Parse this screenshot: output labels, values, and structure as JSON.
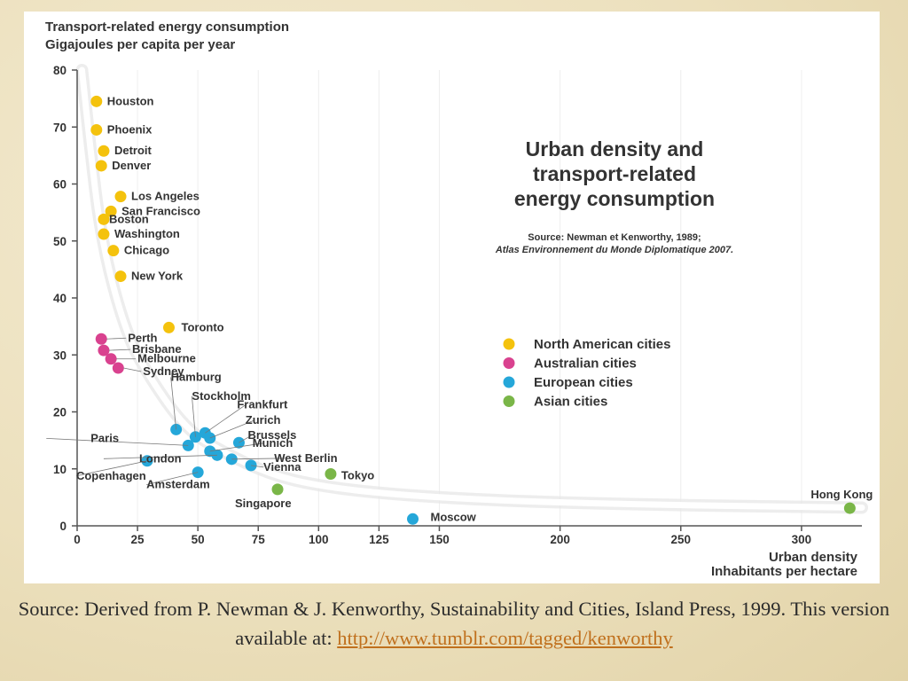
{
  "chart_data": {
    "type": "scatter",
    "title": "Urban density and transport-related energy consumption",
    "title_lines": [
      "Urban density and",
      "transport-related",
      "energy consumption"
    ],
    "source_lines": [
      "Source: Newman et Kenworthy, 1989;",
      "Atlas Environnement du Monde Diplomatique 2007."
    ],
    "ylabel_lines": [
      "Transport-related energy consumption",
      "Gigajoules per capita per year"
    ],
    "xlabel_lines": [
      "Urban density",
      "Inhabitants per hectare"
    ],
    "xlim": [
      0,
      325
    ],
    "ylim": [
      0,
      80
    ],
    "x_ticks": [
      0,
      25,
      50,
      75,
      100,
      125,
      150,
      200,
      250,
      300
    ],
    "y_ticks": [
      0,
      10,
      20,
      30,
      40,
      50,
      60,
      70,
      80
    ],
    "legend": [
      {
        "key": "north_american",
        "label": "North American cities",
        "color": "#f4c20d"
      },
      {
        "key": "australian",
        "label": "Australian cities",
        "color": "#d9428f"
      },
      {
        "key": "european",
        "label": "European cities",
        "color": "#25a7d9"
      },
      {
        "key": "asian",
        "label": "Asian cities",
        "color": "#7ab648"
      }
    ],
    "series": [
      {
        "name": "North American cities",
        "key": "north_american",
        "points": [
          {
            "city": "Houston",
            "x": 8,
            "y": 74.5
          },
          {
            "city": "Phoenix",
            "x": 8,
            "y": 69.5
          },
          {
            "city": "Detroit",
            "x": 11,
            "y": 65.8
          },
          {
            "city": "Denver",
            "x": 10,
            "y": 63.2
          },
          {
            "city": "Los Angeles",
            "x": 18,
            "y": 57.8
          },
          {
            "city": "San Francisco",
            "x": 14,
            "y": 55.2
          },
          {
            "city": "Boston",
            "x": 11,
            "y": 53.8
          },
          {
            "city": "Washington",
            "x": 11,
            "y": 51.2
          },
          {
            "city": "Chicago",
            "x": 15,
            "y": 48.3
          },
          {
            "city": "New York",
            "x": 18,
            "y": 43.8
          },
          {
            "city": "Toronto",
            "x": 38,
            "y": 34.8
          }
        ]
      },
      {
        "name": "Australian cities",
        "key": "australian",
        "points": [
          {
            "city": "Perth",
            "x": 10,
            "y": 32.8
          },
          {
            "city": "Brisbane",
            "x": 11,
            "y": 30.8
          },
          {
            "city": "Melbourne",
            "x": 14,
            "y": 29.3
          },
          {
            "city": "Sydney",
            "x": 17,
            "y": 27.7
          }
        ]
      },
      {
        "name": "European cities",
        "key": "european",
        "points": [
          {
            "city": "Hamburg",
            "x": 41,
            "y": 16.9
          },
          {
            "city": "Stockholm",
            "x": 49,
            "y": 15.6
          },
          {
            "city": "Frankfurt",
            "x": 53,
            "y": 16.3
          },
          {
            "city": "Zurich",
            "x": 55,
            "y": 15.4
          },
          {
            "city": "Brussels",
            "x": 67,
            "y": 14.6
          },
          {
            "city": "Paris",
            "x": 46,
            "y": 14.1
          },
          {
            "city": "Munich",
            "x": 55,
            "y": 13.1
          },
          {
            "city": "London",
            "x": 58,
            "y": 12.4
          },
          {
            "city": "West Berlin",
            "x": 64,
            "y": 11.7
          },
          {
            "city": "Vienna",
            "x": 72,
            "y": 10.6
          },
          {
            "city": "Copenhagen",
            "x": 29,
            "y": 11.4
          },
          {
            "city": "Amsterdam",
            "x": 50,
            "y": 9.4
          },
          {
            "city": "Moscow",
            "x": 139,
            "y": 1.2
          }
        ]
      },
      {
        "name": "Asian cities",
        "key": "asian",
        "points": [
          {
            "city": "Tokyo",
            "x": 105,
            "y": 9.1
          },
          {
            "city": "Singapore",
            "x": 83,
            "y": 6.4
          },
          {
            "city": "Hong Kong",
            "x": 320,
            "y": 3.1
          }
        ]
      }
    ],
    "trend_curve": [
      [
        2,
        80
      ],
      [
        5,
        68
      ],
      [
        10,
        50
      ],
      [
        20,
        34
      ],
      [
        30,
        26
      ],
      [
        45,
        17
      ],
      [
        60,
        13
      ],
      [
        80,
        9
      ],
      [
        100,
        7
      ],
      [
        130,
        5.5
      ],
      [
        180,
        4.3
      ],
      [
        250,
        3.6
      ],
      [
        325,
        3.2
      ]
    ]
  },
  "caption": {
    "text": "Source: Derived from P. Newman & J. Kenworthy, Sustainability and Cities, Island Press, 1999. This version available at:",
    "link_text": "http://www.tumblr.com/tagged/kenworthy"
  }
}
